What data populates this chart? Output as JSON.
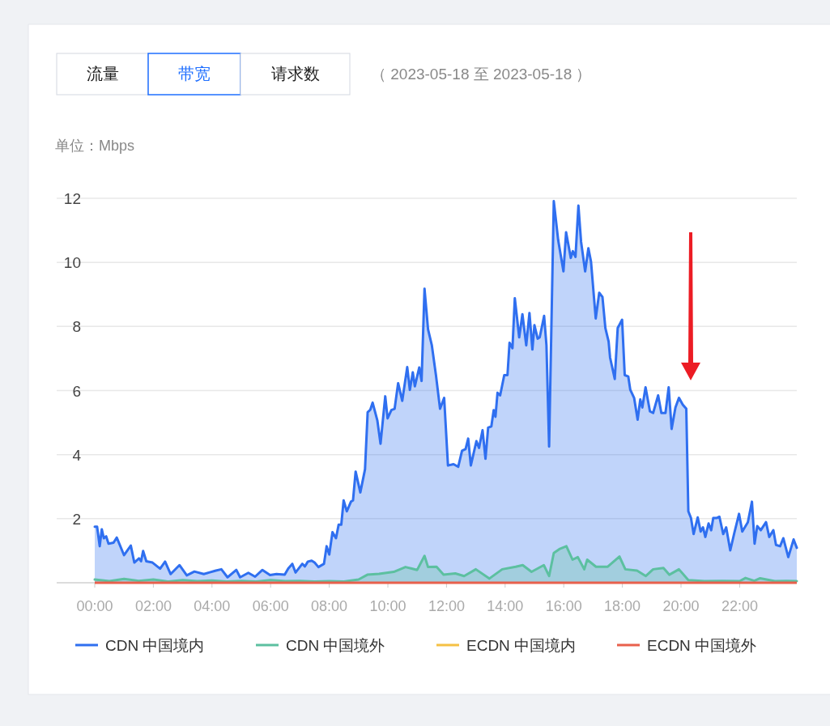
{
  "chart_data": {
    "type": "area",
    "ylabel": "单位：Mbps",
    "annotations": [
      "流量",
      "带宽",
      "请求数",
      "（ 2023-05-18 至 2023-05-18 ）"
    ],
    "xlim": [
      0,
      23.95
    ],
    "ylim": [
      0,
      12
    ],
    "xticks": [
      {
        "value": 0,
        "label": "00:00"
      },
      {
        "value": 2,
        "label": "02:00"
      },
      {
        "value": 4,
        "label": "04:00"
      },
      {
        "value": 6,
        "label": "06:00"
      },
      {
        "value": 8,
        "label": "08:00"
      },
      {
        "value": 10,
        "label": "10:00"
      },
      {
        "value": 12,
        "label": "12:00"
      },
      {
        "value": 14,
        "label": "14:00"
      },
      {
        "value": 16,
        "label": "16:00"
      },
      {
        "value": 18,
        "label": "18:00"
      },
      {
        "value": 20,
        "label": "20:00"
      },
      {
        "value": 22,
        "label": "22:00"
      }
    ],
    "yticks": [
      {
        "value": 0,
        "label": null
      },
      2,
      4,
      6,
      8,
      10,
      12
    ],
    "grid": "y",
    "legend": "bottom",
    "series": [
      {
        "name": "CDN 中国境内",
        "color": "#2f6ff0",
        "x": [
          0,
          0.08,
          0.17,
          0.24,
          0.31,
          0.39,
          0.47,
          0.64,
          0.75,
          1.0,
          1.23,
          1.35,
          1.51,
          1.58,
          1.65,
          1.76,
          1.97,
          2.23,
          2.4,
          2.59,
          2.89,
          3.14,
          3.4,
          3.72,
          3.9,
          4.13,
          4.32,
          4.53,
          4.83,
          4.96,
          5.24,
          5.47,
          5.72,
          5.98,
          6.2,
          6.48,
          6.6,
          6.74,
          6.85,
          7.08,
          7.17,
          7.27,
          7.4,
          7.5,
          7.63,
          7.82,
          7.91,
          8.0,
          8.11,
          8.23,
          8.32,
          8.41,
          8.49,
          8.6,
          8.74,
          8.81,
          8.9,
          9.06,
          9.22,
          9.31,
          9.4,
          9.48,
          9.64,
          9.75,
          9.91,
          9.99,
          10.12,
          10.23,
          10.35,
          10.49,
          10.66,
          10.75,
          10.85,
          10.92,
          11.07,
          11.15,
          11.25,
          11.37,
          11.5,
          11.64,
          11.78,
          11.92,
          12.05,
          12.24,
          12.4,
          12.53,
          12.65,
          12.74,
          12.83,
          13.02,
          13.11,
          13.23,
          13.33,
          13.42,
          13.53,
          13.61,
          13.67,
          13.74,
          13.83,
          13.97,
          14.08,
          14.15,
          14.25,
          14.33,
          14.48,
          14.59,
          14.72,
          14.83,
          14.93,
          15.0,
          15.11,
          15.18,
          15.33,
          15.41,
          15.5,
          15.66,
          15.81,
          15.99,
          16.08,
          16.24,
          16.31,
          16.4,
          16.5,
          16.59,
          16.73,
          16.84,
          16.93,
          17.09,
          17.21,
          17.32,
          17.42,
          17.53,
          17.58,
          17.74,
          17.84,
          17.99,
          18.08,
          18.2,
          18.27,
          18.4,
          18.52,
          18.61,
          18.68,
          18.79,
          18.94,
          19.05,
          19.22,
          19.33,
          19.47,
          19.58,
          19.68,
          19.81,
          19.93,
          20.06,
          20.18,
          20.25,
          20.34,
          20.43,
          20.57,
          20.67,
          20.75,
          20.83,
          20.94,
          21.03,
          21.1,
          21.21,
          21.31,
          21.44,
          21.54,
          21.68,
          21.82,
          21.98,
          22.09,
          22.28,
          22.42,
          22.51,
          22.6,
          22.72,
          22.9,
          23.01,
          23.15,
          23.24,
          23.38,
          23.49,
          23.66,
          23.84,
          23.95
        ],
        "values": [
          1.75,
          1.75,
          1.14,
          1.67,
          1.39,
          1.45,
          1.22,
          1.25,
          1.41,
          0.86,
          1.16,
          0.63,
          0.76,
          0.67,
          0.99,
          0.67,
          0.63,
          0.44,
          0.66,
          0.27,
          0.55,
          0.23,
          0.35,
          0.27,
          0.32,
          0.38,
          0.42,
          0.17,
          0.4,
          0.17,
          0.31,
          0.19,
          0.4,
          0.24,
          0.27,
          0.25,
          0.44,
          0.59,
          0.32,
          0.59,
          0.51,
          0.66,
          0.69,
          0.63,
          0.49,
          0.59,
          1.14,
          0.88,
          1.58,
          1.39,
          1.81,
          1.81,
          2.57,
          2.23,
          2.53,
          2.57,
          3.47,
          2.82,
          3.54,
          5.32,
          5.4,
          5.62,
          5.07,
          4.34,
          5.82,
          5.13,
          5.39,
          5.43,
          6.23,
          5.68,
          6.73,
          6.02,
          6.57,
          6.13,
          6.72,
          6.3,
          9.18,
          7.91,
          7.41,
          6.48,
          5.43,
          5.77,
          3.66,
          3.7,
          3.62,
          4.12,
          4.17,
          4.5,
          3.66,
          4.42,
          4.21,
          4.76,
          3.87,
          4.84,
          4.88,
          5.39,
          5.18,
          5.93,
          5.85,
          6.48,
          6.48,
          7.49,
          7.32,
          8.88,
          7.66,
          8.38,
          7.41,
          8.42,
          7.28,
          8.04,
          7.62,
          7.66,
          8.33,
          7.41,
          4.25,
          11.91,
          10.69,
          9.72,
          10.94,
          10.14,
          10.35,
          10.17,
          11.77,
          10.65,
          9.72,
          10.44,
          10.02,
          8.25,
          9.05,
          8.92,
          7.95,
          7.53,
          7.03,
          6.36,
          7.95,
          8.21,
          6.48,
          6.44,
          6.02,
          5.77,
          5.09,
          5.72,
          5.47,
          6.1,
          5.35,
          5.3,
          5.85,
          5.3,
          5.3,
          6.1,
          4.8,
          5.47,
          5.77,
          5.56,
          5.43,
          2.23,
          2.02,
          1.52,
          2.04,
          1.6,
          1.73,
          1.43,
          1.85,
          1.64,
          2.02,
          2.02,
          2.06,
          1.52,
          1.73,
          1.01,
          1.56,
          2.15,
          1.6,
          1.89,
          2.53,
          1.22,
          1.77,
          1.64,
          1.89,
          1.43,
          1.64,
          1.18,
          1.14,
          1.39,
          0.8,
          1.35,
          1.09
        ]
      },
      {
        "name": "CDN 中国境外",
        "color": "#5cc0a0",
        "x": [
          0,
          0.5,
          1.0,
          1.5,
          2.0,
          2.5,
          3.0,
          3.5,
          4.0,
          4.5,
          5.0,
          5.5,
          6.0,
          6.5,
          7.0,
          7.5,
          8.0,
          8.5,
          9.0,
          9.3,
          9.7,
          10.2,
          10.6,
          11.0,
          11.25,
          11.37,
          11.66,
          11.9,
          12.3,
          12.6,
          13.0,
          13.46,
          13.9,
          14.36,
          14.6,
          14.9,
          15.32,
          15.5,
          15.66,
          15.85,
          16.09,
          16.3,
          16.48,
          16.7,
          16.8,
          17.1,
          17.5,
          17.9,
          18.1,
          18.5,
          18.8,
          19.05,
          19.4,
          19.6,
          19.93,
          20.25,
          20.8,
          21.4,
          22.0,
          22.2,
          22.5,
          22.7,
          23.2,
          23.6,
          23.95
        ],
        "values": [
          0.1,
          0.05,
          0.12,
          0.06,
          0.1,
          0.04,
          0.08,
          0.05,
          0.07,
          0.04,
          0.06,
          0.04,
          0.08,
          0.05,
          0.06,
          0.04,
          0.05,
          0.04,
          0.1,
          0.25,
          0.28,
          0.34,
          0.49,
          0.4,
          0.84,
          0.49,
          0.5,
          0.25,
          0.29,
          0.21,
          0.42,
          0.13,
          0.42,
          0.5,
          0.55,
          0.34,
          0.55,
          0.21,
          0.93,
          1.05,
          1.14,
          0.72,
          0.8,
          0.42,
          0.72,
          0.5,
          0.5,
          0.82,
          0.42,
          0.38,
          0.21,
          0.42,
          0.46,
          0.25,
          0.42,
          0.08,
          0.05,
          0.06,
          0.05,
          0.15,
          0.06,
          0.14,
          0.05,
          0.06,
          0.05
        ]
      },
      {
        "name": "ECDN 中国境内",
        "type": "line",
        "color": "#f5c144",
        "values": [
          null,
          null
        ]
      },
      {
        "name": "ECDN 中国境外",
        "type": "line",
        "color": "#e8604c",
        "x": [
          0,
          23.95
        ],
        "values": [
          0,
          0
        ]
      }
    ]
  }
}
